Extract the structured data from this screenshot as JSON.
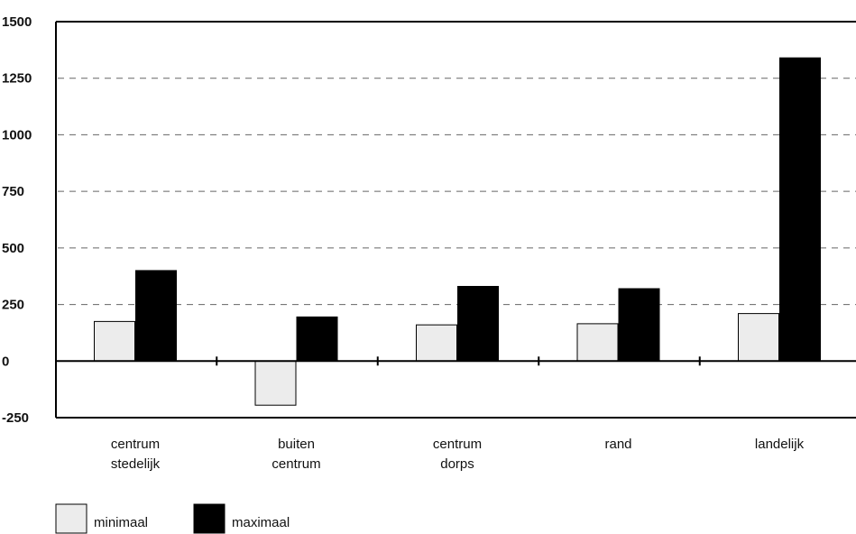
{
  "chart_data": {
    "type": "bar",
    "title": "",
    "xlabel": "",
    "ylabel": "",
    "ylim": [
      -250,
      1500
    ],
    "yticks": [
      1500,
      1250,
      1000,
      750,
      500,
      250,
      0,
      -250
    ],
    "grid": "dashed horizontal",
    "categories": [
      [
        "centrum",
        "stedelijk"
      ],
      [
        "buiten",
        "centrum"
      ],
      [
        "centrum",
        "dorps"
      ],
      [
        "rand"
      ],
      [
        "landelijk"
      ]
    ],
    "series": [
      {
        "name": "minimaal",
        "color": "#ececec",
        "values": [
          175,
          -195,
          160,
          165,
          210
        ]
      },
      {
        "name": "maximaal",
        "color": "#000000",
        "values": [
          400,
          195,
          330,
          320,
          1340
        ]
      }
    ],
    "legend": {
      "placement": "bottom-left"
    }
  }
}
